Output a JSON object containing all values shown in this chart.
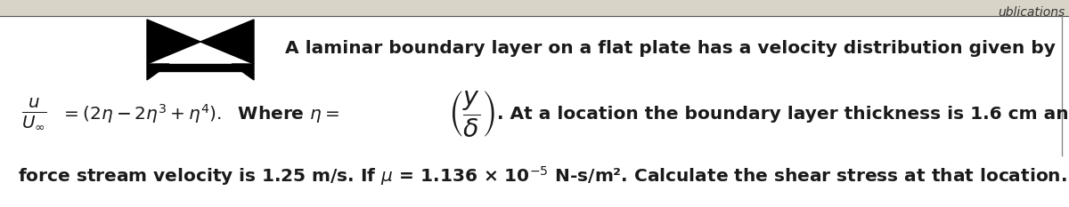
{
  "line1": "A laminar boundary layer on a flat plate has a velocity distribution given by",
  "line3": "force stream velocity is 1.25 m/s. If μ = 1.136 × 10⁻⁵ N-s/m². Calculate the shear stress at that location.",
  "bg_color": "#f5f5f0",
  "text_color": "#1a1a1a",
  "font_size": 14.5,
  "corner_text": "ublications"
}
